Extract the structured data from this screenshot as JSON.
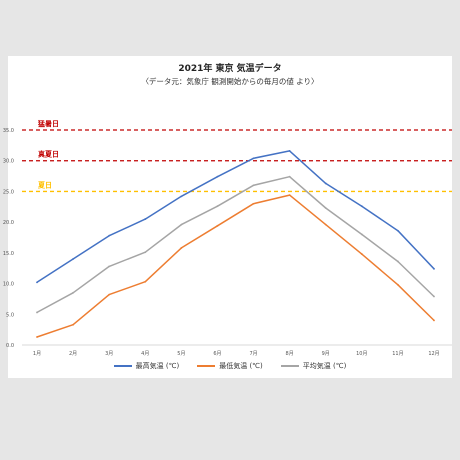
{
  "header": {
    "title": "2021年 東京 気温データ",
    "subtitle": "〈データ元：気象庁 観測開始からの毎月の値 より〉"
  },
  "chart_data": {
    "type": "line",
    "title": "2021年 東京 気温データ",
    "subtitle": "〈データ元：気象庁 観測開始からの毎月の値 より〉",
    "categories": [
      "1月",
      "2月",
      "3月",
      "4月",
      "5月",
      "6月",
      "7月",
      "8月",
      "9月",
      "10月",
      "11月",
      "12月"
    ],
    "ylim": [
      0,
      35
    ],
    "yticks": [
      "0.0",
      "5.0",
      "10.0",
      "15.0",
      "20.0",
      "25.0",
      "30.0",
      "35.0"
    ],
    "grid": false,
    "legend_position": "bottom",
    "series": [
      {
        "name": "最高気温 (℃)",
        "color": "#4472c4",
        "values": [
          10.2,
          14.0,
          17.8,
          20.5,
          24.2,
          27.4,
          30.4,
          31.6,
          26.3,
          22.6,
          18.6,
          12.4
        ]
      },
      {
        "name": "最低気温 (℃)",
        "color": "#ed7d31",
        "values": [
          1.3,
          3.3,
          8.2,
          10.3,
          15.8,
          19.4,
          23.0,
          24.4,
          19.6,
          14.8,
          9.8,
          4.0
        ]
      },
      {
        "name": "平均気温 (℃)",
        "color": "#a5a5a5",
        "values": [
          5.3,
          8.5,
          12.8,
          15.1,
          19.6,
          22.6,
          26.0,
          27.4,
          22.3,
          18.0,
          13.6,
          7.9
        ]
      }
    ],
    "thresholds": [
      {
        "label": "猛暑日",
        "value": 35,
        "color": "#c00000"
      },
      {
        "label": "真夏日",
        "value": 30,
        "color": "#c00000"
      },
      {
        "label": "夏日",
        "value": 25,
        "color": "#ffc000"
      }
    ]
  }
}
